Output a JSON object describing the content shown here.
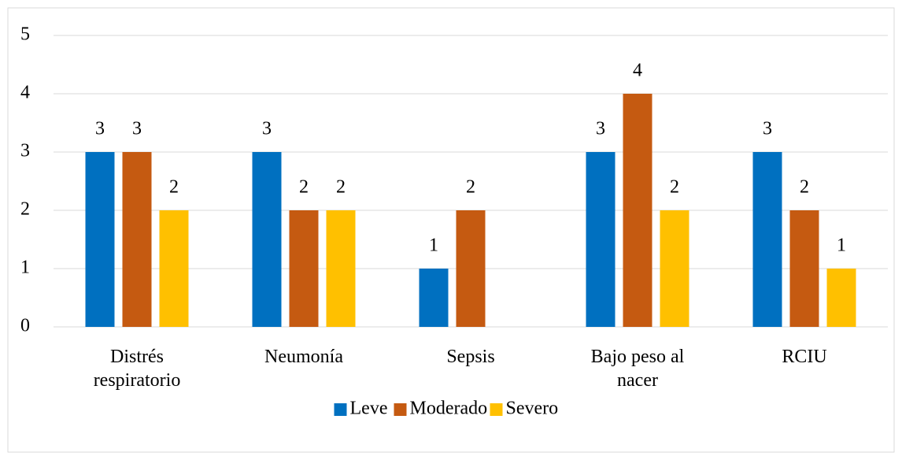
{
  "chart_data": {
    "type": "bar",
    "categories": [
      "Distrés respiratorio",
      "Neumonía",
      "Sepsis",
      "Bajo peso al nacer",
      "RCIU"
    ],
    "series": [
      {
        "name": "Leve",
        "color": "#0070c0",
        "values": [
          3,
          3,
          1,
          3,
          3
        ]
      },
      {
        "name": "Moderado",
        "color": "#c55a11",
        "values": [
          3,
          2,
          2,
          4,
          2
        ]
      },
      {
        "name": "Severo",
        "color": "#ffc000",
        "values": [
          2,
          2,
          null,
          2,
          1
        ]
      }
    ],
    "ylim": [
      0,
      5
    ],
    "yticks": [
      0,
      1,
      2,
      3,
      4,
      5
    ],
    "grid": true,
    "legend": "bottom"
  }
}
